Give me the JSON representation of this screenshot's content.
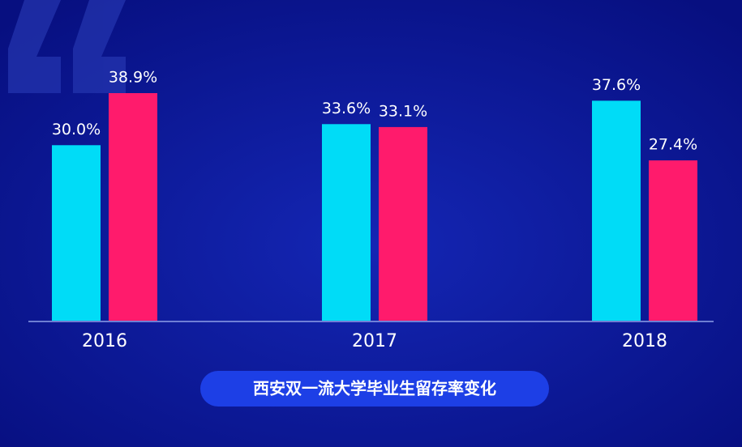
{
  "chart_data": {
    "type": "bar",
    "title": "西安双一流大学毕业生留存率变化",
    "categories": [
      "2016",
      "2017",
      "2018"
    ],
    "series": [
      {
        "color": "#00dcf7",
        "values": [
          30.0,
          33.6,
          37.6
        ],
        "value_labels": [
          "30.0%",
          "33.6%",
          "37.6%"
        ]
      },
      {
        "color": "#ff1b6c",
        "values": [
          38.9,
          33.1,
          27.4
        ],
        "value_labels": [
          "38.9%",
          "33.1%",
          "27.4%"
        ]
      }
    ]
  }
}
